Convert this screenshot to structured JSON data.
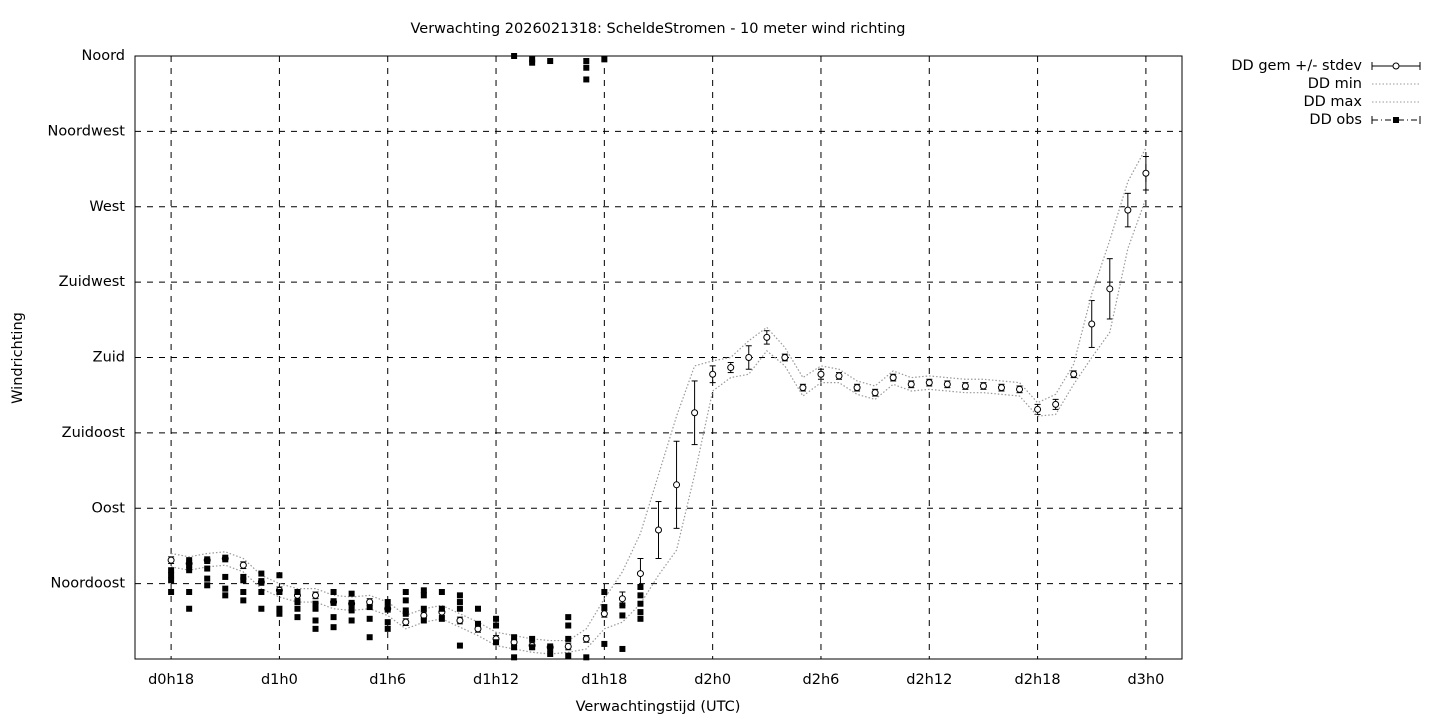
{
  "chart_data": {
    "type": "line",
    "title": "Verwachting 2026021318: ScheldeStromen - 10 meter wind richting",
    "xlabel": "Verwachtingstijd (UTC)",
    "ylabel": "Windrichting",
    "xlim": [
      16,
      74
    ],
    "ylim": [
      0,
      360
    ],
    "xticks": [
      {
        "value": 18,
        "label": "d0h18"
      },
      {
        "value": 24,
        "label": "d1h0"
      },
      {
        "value": 30,
        "label": "d1h6"
      },
      {
        "value": 36,
        "label": "d1h12"
      },
      {
        "value": 42,
        "label": "d1h18"
      },
      {
        "value": 48,
        "label": "d2h0"
      },
      {
        "value": 54,
        "label": "d2h6"
      },
      {
        "value": 60,
        "label": "d2h12"
      },
      {
        "value": 66,
        "label": "d2h18"
      },
      {
        "value": 72,
        "label": "d3h0"
      }
    ],
    "yticks": [
      {
        "value": 45,
        "label": "Noordoost"
      },
      {
        "value": 90,
        "label": "Oost"
      },
      {
        "value": 135,
        "label": "Zuidoost"
      },
      {
        "value": 180,
        "label": "Zuid"
      },
      {
        "value": 225,
        "label": "Zuidwest"
      },
      {
        "value": 270,
        "label": "West"
      },
      {
        "value": 315,
        "label": "Noordwest"
      },
      {
        "value": 360,
        "label": "Noord"
      }
    ],
    "grid": true,
    "x": [
      18,
      19,
      20,
      21,
      22,
      23,
      24,
      25,
      26,
      27,
      28,
      29,
      30,
      31,
      32,
      33,
      34,
      35,
      36,
      37,
      38,
      39,
      40,
      41,
      42,
      43,
      44,
      45,
      46,
      47,
      48,
      49,
      50,
      51,
      52,
      53,
      54,
      55,
      56,
      57,
      58,
      59,
      60,
      61,
      62,
      63,
      64,
      65,
      66,
      67,
      68,
      69,
      70,
      71,
      72
    ],
    "series": [
      {
        "name": "DD gem +/- stdev",
        "style": "errorbar",
        "color": "#000000",
        "values": [
          59,
          57,
          59,
          60,
          56,
          46,
          41,
          38,
          38,
          34,
          33,
          34,
          30,
          22,
          26,
          28,
          23,
          18,
          12,
          10,
          8,
          7,
          7.5,
          12,
          27,
          36,
          51,
          77,
          104,
          147,
          170,
          174,
          180,
          192,
          180,
          162,
          170,
          169,
          162,
          159,
          168,
          164,
          165,
          164,
          163,
          163,
          162,
          161,
          149,
          152,
          170,
          200,
          221,
          268,
          290
        ],
        "errors": [
          2,
          2,
          2,
          2,
          2,
          2,
          2,
          2,
          2,
          2,
          2,
          2,
          2,
          2,
          2,
          2,
          2,
          2,
          2,
          2,
          2,
          2,
          2,
          2,
          2,
          4,
          9,
          17,
          26,
          19,
          5,
          3,
          7,
          4,
          2,
          2,
          3,
          2,
          2,
          2,
          2,
          2,
          2,
          2,
          2,
          2,
          2,
          2,
          3,
          3,
          2,
          14,
          18,
          10,
          10
        ]
      },
      {
        "name": "DD min",
        "style": "dotted",
        "color": "#999999",
        "values": [
          55,
          53,
          55,
          56,
          52,
          42,
          37,
          34,
          34,
          30,
          29,
          30,
          26,
          18,
          22,
          24,
          19,
          14,
          8,
          6,
          4,
          3,
          4,
          6,
          18,
          22,
          33,
          50,
          65,
          110,
          160,
          168,
          170,
          184,
          175,
          157,
          165,
          165,
          158,
          155,
          164,
          160,
          161,
          160,
          159,
          159,
          158,
          157,
          145,
          146,
          164,
          180,
          195,
          245,
          275
        ]
      },
      {
        "name": "DD max",
        "style": "dotted",
        "color": "#999999",
        "values": [
          63,
          61,
          63,
          64,
          60,
          50,
          45,
          42,
          42,
          38,
          37,
          38,
          34,
          26,
          30,
          32,
          27,
          22,
          16,
          14,
          12,
          11,
          11,
          18,
          36,
          52,
          75,
          110,
          145,
          175,
          178,
          180,
          190,
          198,
          186,
          168,
          175,
          173,
          166,
          163,
          172,
          168,
          169,
          168,
          167,
          167,
          166,
          165,
          153,
          158,
          176,
          218,
          250,
          285,
          305
        ]
      },
      {
        "name": "DD obs",
        "style": "points",
        "color": "#000000",
        "x": [
          18,
          18,
          18,
          18,
          19,
          19,
          19,
          19,
          19,
          20,
          20,
          20,
          20,
          21,
          21,
          21,
          21,
          22,
          22,
          22,
          22,
          23,
          23,
          23,
          23,
          24,
          24,
          24,
          24,
          25,
          25,
          25,
          25,
          26,
          26,
          26,
          26,
          27,
          27,
          27,
          27,
          28,
          28,
          28,
          28,
          29,
          29,
          29,
          30,
          30,
          30,
          30,
          31,
          31,
          31,
          31,
          32,
          32,
          32,
          32,
          33,
          33,
          33,
          34,
          34,
          34,
          34,
          35,
          35,
          36,
          36,
          36,
          37,
          37,
          37,
          37,
          38,
          38,
          38,
          38,
          39,
          39,
          39,
          40,
          40,
          40,
          40,
          41,
          41,
          41,
          41,
          42,
          42,
          42,
          42,
          43,
          43,
          43,
          44,
          44,
          44,
          44,
          44
        ],
        "values": [
          53,
          50,
          47,
          40,
          59,
          56,
          53,
          40,
          30,
          59,
          54,
          48,
          44,
          60,
          49,
          42,
          38,
          49,
          47,
          40,
          35,
          51,
          46,
          40,
          30,
          50,
          40,
          30,
          27,
          40,
          34,
          30,
          25,
          33,
          30,
          23,
          18,
          40,
          34,
          25,
          19,
          39,
          33,
          29,
          23,
          31,
          24,
          13,
          34,
          30,
          22,
          18,
          40,
          35,
          29,
          27,
          41,
          38,
          30,
          23,
          40,
          30,
          24,
          38,
          34,
          30,
          8,
          30,
          21,
          24,
          20,
          10,
          360,
          13,
          7,
          1,
          358,
          356,
          12,
          7,
          357,
          7,
          3,
          25,
          20,
          12,
          2,
          357,
          353,
          346,
          1,
          358,
          40,
          31,
          9,
          32,
          26,
          6,
          43,
          38,
          33,
          28,
          24
        ]
      }
    ]
  }
}
